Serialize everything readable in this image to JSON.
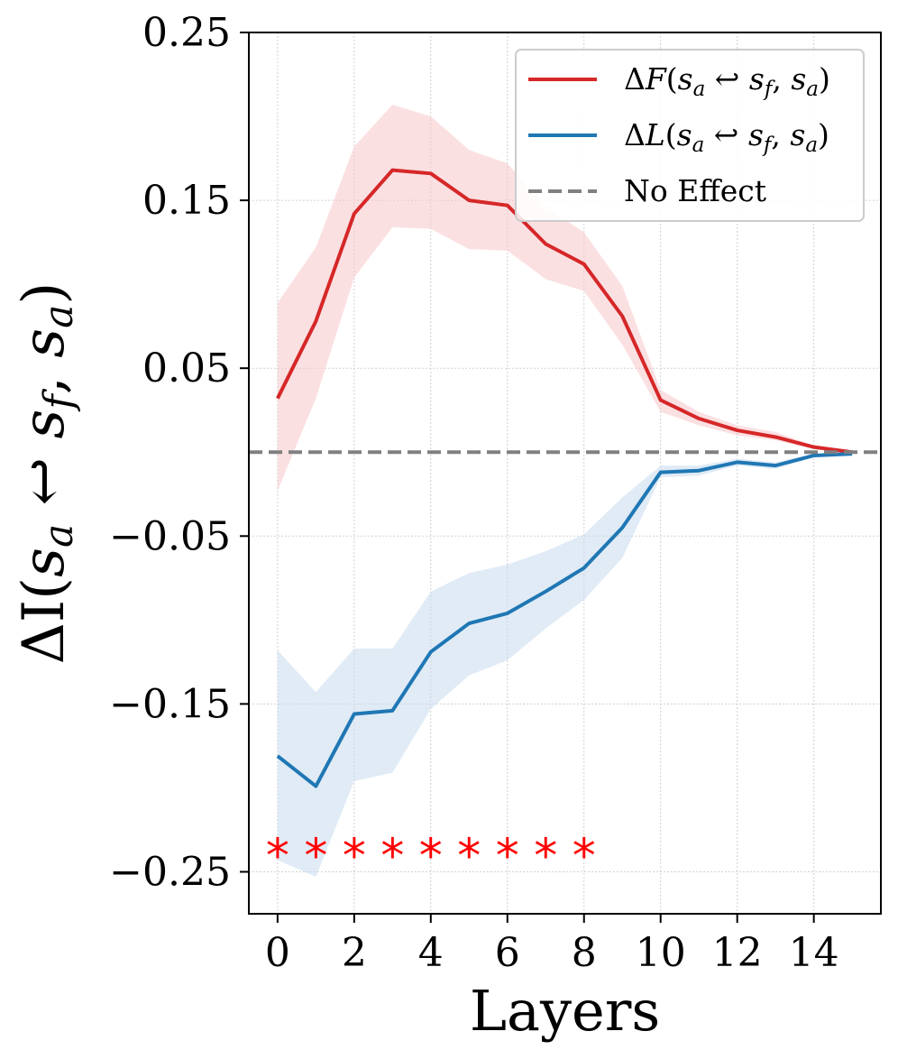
{
  "chart_data": {
    "type": "line",
    "xlabel": "Layers",
    "ylabel": "ΔI(sₐ ↩ s_f, sₐ)",
    "xlim": [
      -0.75,
      15.75
    ],
    "ylim": [
      -0.275,
      0.25
    ],
    "xticks": [
      0,
      2,
      4,
      6,
      8,
      10,
      12,
      14
    ],
    "yticks": [
      0.25,
      0.15,
      0.05,
      -0.05,
      -0.15,
      -0.25
    ],
    "ytick_labels": [
      "0.25",
      "0.15",
      "0.05",
      "−0.05",
      "−0.15",
      "−0.25"
    ],
    "grid": true,
    "legend_position": "top-right",
    "x": [
      0,
      1,
      2,
      3,
      4,
      5,
      6,
      7,
      8,
      9,
      10,
      11,
      12,
      13,
      14,
      15
    ],
    "series": [
      {
        "name": "ΔF(sₐ ↩ s_f, sₐ)",
        "color": "#d62728",
        "band_color": "#f7c6cb",
        "values": [
          0.032,
          0.078,
          0.142,
          0.168,
          0.166,
          0.15,
          0.147,
          0.124,
          0.112,
          0.081,
          0.031,
          0.02,
          0.013,
          0.009,
          0.003,
          0.0
        ],
        "lower": [
          -0.023,
          0.032,
          0.104,
          0.134,
          0.133,
          0.121,
          0.12,
          0.103,
          0.096,
          0.064,
          0.024,
          0.016,
          0.01,
          0.007,
          0.002,
          0.0
        ],
        "upper": [
          0.089,
          0.122,
          0.182,
          0.207,
          0.2,
          0.18,
          0.172,
          0.146,
          0.131,
          0.099,
          0.037,
          0.024,
          0.016,
          0.012,
          0.004,
          0.0
        ]
      },
      {
        "name": "ΔL(sₐ ↩ s_f, sₐ)",
        "color": "#1f77b4",
        "band_color": "#c6dbef",
        "values": [
          -0.181,
          -0.199,
          -0.156,
          -0.154,
          -0.119,
          -0.102,
          -0.096,
          -0.083,
          -0.069,
          -0.045,
          -0.012,
          -0.011,
          -0.006,
          -0.008,
          -0.002,
          -0.001
        ],
        "lower": [
          -0.243,
          -0.253,
          -0.196,
          -0.191,
          -0.153,
          -0.133,
          -0.124,
          -0.105,
          -0.088,
          -0.063,
          -0.015,
          -0.014,
          -0.008,
          -0.01,
          -0.003,
          -0.001
        ],
        "upper": [
          -0.118,
          -0.143,
          -0.117,
          -0.117,
          -0.083,
          -0.072,
          -0.067,
          -0.059,
          -0.049,
          -0.027,
          -0.008,
          -0.008,
          -0.004,
          -0.006,
          -0.001,
          0.0
        ]
      }
    ],
    "reference_line": {
      "name": "No Effect",
      "y": 0,
      "color": "#808080",
      "style": "dashed"
    },
    "significance": {
      "marker": "*",
      "color": "#ff0000",
      "y": -0.234,
      "x": [
        0,
        1,
        2,
        3,
        4,
        5,
        6,
        7,
        8
      ]
    }
  }
}
